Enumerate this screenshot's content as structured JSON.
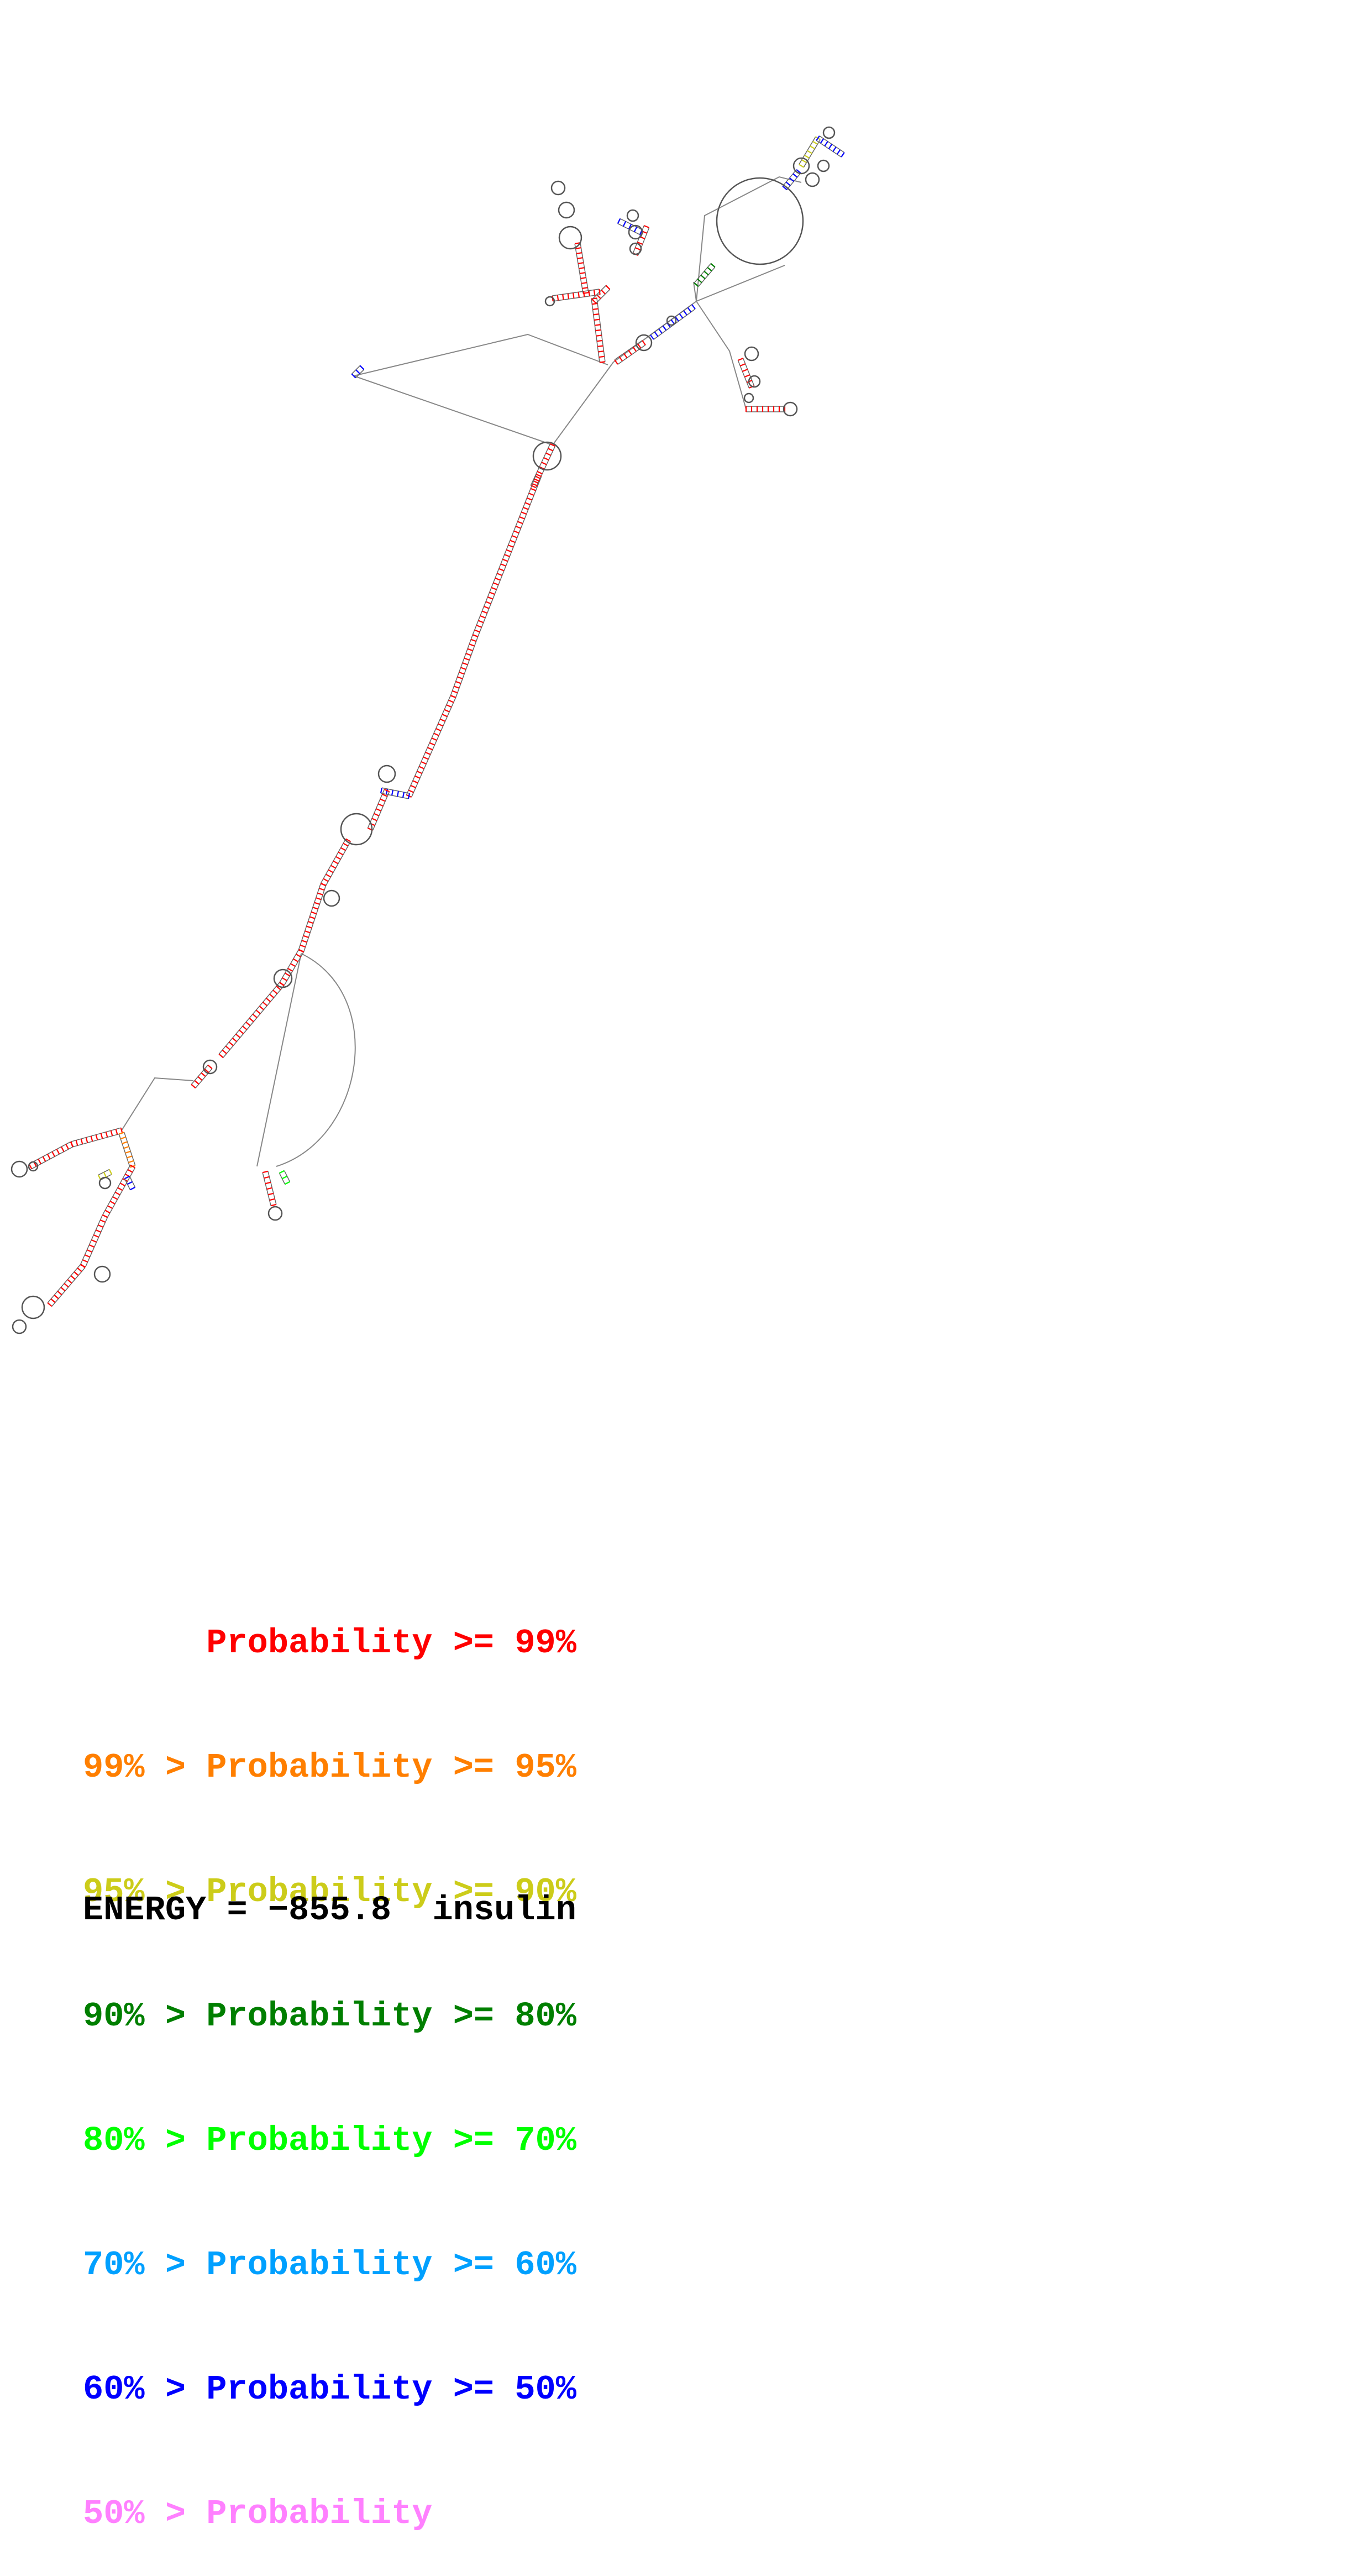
{
  "legend": [
    {
      "text": "      Probability >= 99%",
      "color": "#ff0000"
    },
    {
      "text": "99% > Probability >= 95%",
      "color": "#ff7f00"
    },
    {
      "text": "95% > Probability >= 90%",
      "color": "#cccc1a"
    },
    {
      "text": "90% > Probability >= 80%",
      "color": "#007f00"
    },
    {
      "text": "80% > Probability >= 70%",
      "color": "#00ff00"
    },
    {
      "text": "70% > Probability >= 60%",
      "color": "#00a0ff"
    },
    {
      "text": "60% > Probability >= 50%",
      "color": "#0000ff"
    },
    {
      "text": "50% > Probability",
      "color": "#ff80ff"
    }
  ],
  "footer": {
    "energy_label": "ENERGY = ",
    "energy_value": "−855.8",
    "sequence_name": "insulin"
  },
  "colors": {
    "backbone": "#888888",
    "loop": "#555555"
  }
}
